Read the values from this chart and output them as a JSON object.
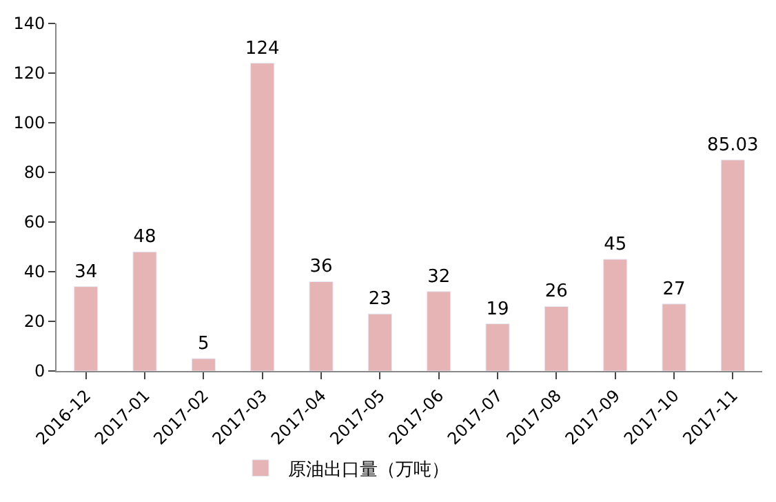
{
  "chart_data": {
    "type": "bar",
    "categories": [
      "2016-12",
      "2017-01",
      "2017-02",
      "2017-03",
      "2017-04",
      "2017-05",
      "2017-06",
      "2017-07",
      "2017-08",
      "2017-09",
      "2017-10",
      "2017-11"
    ],
    "series": [
      {
        "name": "原油出口量（万吨）",
        "color": "#e6b4b4",
        "values": [
          34,
          48,
          5,
          124,
          36,
          23,
          32,
          19,
          26,
          45,
          27,
          85.03
        ]
      }
    ],
    "ylim": [
      0,
      140
    ],
    "yticks": [
      0,
      20,
      40,
      60,
      80,
      100,
      120,
      140
    ],
    "legend": "bottom",
    "data_labels": true
  }
}
